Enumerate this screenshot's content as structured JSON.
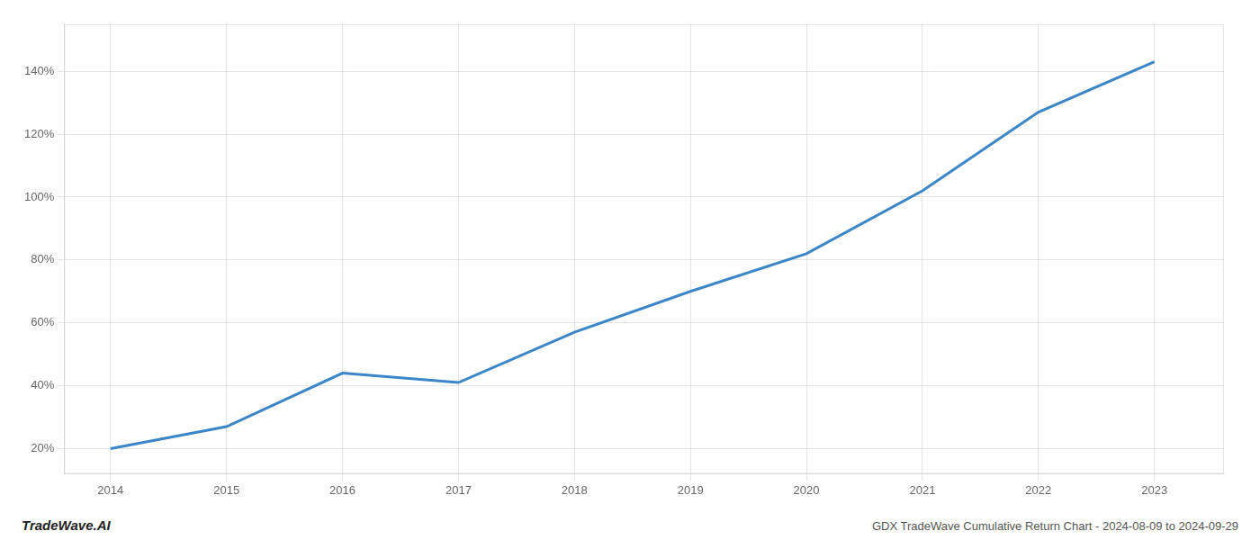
{
  "chart_data": {
    "type": "line",
    "x": [
      2014,
      2015,
      2016,
      2017,
      2018,
      2019,
      2020,
      2021,
      2022,
      2023
    ],
    "values": [
      20,
      27,
      44,
      41,
      57,
      70,
      82,
      102,
      127,
      143
    ],
    "color": "#3a86c8",
    "xlim": [
      2013.6,
      2023.6
    ],
    "xticks": [
      2014,
      2015,
      2016,
      2017,
      2018,
      2019,
      2020,
      2021,
      2022,
      2023
    ],
    "ylim": [
      12,
      155
    ],
    "yticks": [
      {
        "value": 20,
        "label": "20%"
      },
      {
        "value": 40,
        "label": "40%"
      },
      {
        "value": 60,
        "label": "60%"
      },
      {
        "value": 80,
        "label": "80%"
      },
      {
        "value": 100,
        "label": "100%"
      },
      {
        "value": 120,
        "label": "120%"
      },
      {
        "value": 140,
        "label": "140%"
      }
    ],
    "grid": true,
    "annotations": [
      "TradeWave.AI",
      "GDX TradeWave Cumulative Return Chart - 2024-08-09 to 2024-09-29"
    ]
  }
}
